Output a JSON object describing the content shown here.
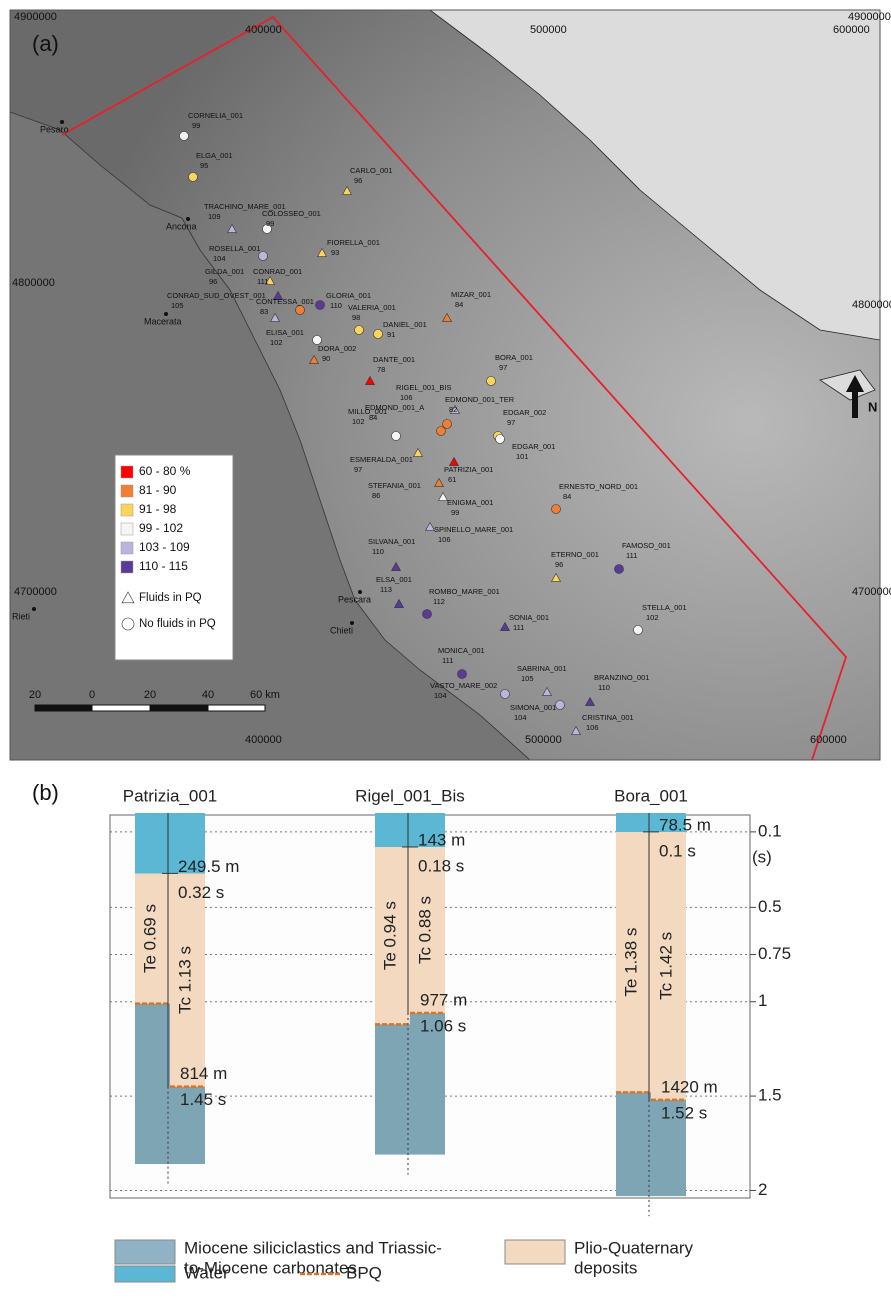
{
  "map": {
    "panel_label": "(a)",
    "coordinates": {
      "top": [
        400000,
        500000,
        600000
      ],
      "bottom": [
        400000,
        500000,
        600000
      ],
      "left": [
        4900000,
        4800000,
        4700000
      ],
      "right": [
        4900000,
        4800000,
        4700000
      ]
    },
    "places": [
      "Pesaro",
      "Ancona",
      "Macerata",
      "Pescara",
      "Chieti",
      "Rieti"
    ],
    "north": "N",
    "scale_bar": [
      20,
      0,
      20,
      40,
      "60 km"
    ],
    "legend": {
      "classes": [
        {
          "label": "60 - 80 %",
          "color": "#ff0000"
        },
        {
          "label": "81 - 90",
          "color": "#f07f34"
        },
        {
          "label": "91 - 98",
          "color": "#fcd45c"
        },
        {
          "label": "99 - 102",
          "color": "#f5f5f5"
        },
        {
          "label": "103 - 109",
          "color": "#bcb4de"
        },
        {
          "label": "110 - 115",
          "color": "#5a3a97"
        }
      ],
      "symbols": [
        {
          "shape": "triangle",
          "label": "Fluids in PQ"
        },
        {
          "shape": "circle",
          "label": "No fluids in PQ"
        }
      ]
    },
    "wells": [
      {
        "name": "CORNELIA_001",
        "value": 99,
        "shape": "circle",
        "color": "#f5f5f5"
      },
      {
        "name": "ELGA_001",
        "value": 95,
        "shape": "circle",
        "color": "#fcd45c"
      },
      {
        "name": "CARLO_001",
        "value": 96,
        "shape": "triangle",
        "color": "#fcd45c"
      },
      {
        "name": "TRACHINO_MARE_001",
        "value": 109,
        "shape": "triangle",
        "color": "#bcb4de"
      },
      {
        "name": "COLOSSEO_001",
        "value": 99,
        "shape": "circle",
        "color": "#f5f5f5"
      },
      {
        "name": "FIORELLA_001",
        "value": 93,
        "shape": "triangle",
        "color": "#fcd45c"
      },
      {
        "name": "ROSELLA_001",
        "value": 104,
        "shape": "circle",
        "color": "#bcb4de"
      },
      {
        "name": "GILDA_001",
        "value": 96,
        "shape": "triangle",
        "color": "#fcd45c"
      },
      {
        "name": "CONRAD_001",
        "value": 111,
        "shape": "triangle",
        "color": "#5a3a97"
      },
      {
        "name": "CONRAD_SUD_OVEST_001",
        "value": 105,
        "shape": "triangle",
        "color": "#bcb4de"
      },
      {
        "name": "CONTESSA_001",
        "value": 83,
        "shape": "circle",
        "color": "#f07f34"
      },
      {
        "name": "GLORIA_001",
        "value": 110,
        "shape": "circle",
        "color": "#5a3a97"
      },
      {
        "name": "VALERIA_001",
        "value": 98,
        "shape": "circle",
        "color": "#fcd45c"
      },
      {
        "name": "DANIEL_001",
        "value": 91,
        "shape": "circle",
        "color": "#fcd45c"
      },
      {
        "name": "MIZAR_001",
        "value": 84,
        "shape": "triangle",
        "color": "#f07f34"
      },
      {
        "name": "ELISA_001",
        "value": 102,
        "shape": "circle",
        "color": "#f5f5f5"
      },
      {
        "name": "DORA_002",
        "value": 90,
        "shape": "triangle",
        "color": "#f07f34"
      },
      {
        "name": "DANTE_001",
        "value": 78,
        "shape": "triangle",
        "color": "#ff0000"
      },
      {
        "name": "BORA_001",
        "value": 97,
        "shape": "circle",
        "color": "#fcd45c"
      },
      {
        "name": "RIGEL_001_BIS",
        "value": 106,
        "shape": "triangle",
        "color": "#bcb4de"
      },
      {
        "name": "EDMOND_001_A",
        "value": 84,
        "shape": "circle",
        "color": "#f07f34"
      },
      {
        "name": "EDMOND_001_TER",
        "value": 82,
        "shape": "circle",
        "color": "#f07f34"
      },
      {
        "name": "MILLO_001",
        "value": 102,
        "shape": "circle",
        "color": "#f5f5f5"
      },
      {
        "name": "EDGAR_002",
        "value": 97,
        "shape": "circle",
        "color": "#fcd45c"
      },
      {
        "name": "EDGAR_001",
        "value": 101,
        "shape": "circle",
        "color": "#f5f5f5"
      },
      {
        "name": "ESMERALDA_001",
        "value": 97,
        "shape": "triangle",
        "color": "#fcd45c"
      },
      {
        "name": "PATRIZIA_001",
        "value": 61,
        "shape": "triangle",
        "color": "#ff0000"
      },
      {
        "name": "STEFANIA_001",
        "value": 86,
        "shape": "triangle",
        "color": "#f07f34"
      },
      {
        "name": "ENIGMA_001",
        "value": 99,
        "shape": "triangle",
        "color": "#f5f5f5"
      },
      {
        "name": "ERNESTO_NORD_001",
        "value": 84,
        "shape": "circle",
        "color": "#f07f34"
      },
      {
        "name": "SPINELLO_MARE_001",
        "value": 106,
        "shape": "triangle",
        "color": "#bcb4de"
      },
      {
        "name": "SILVANA_001",
        "value": 110,
        "shape": "triangle",
        "color": "#5a3a97"
      },
      {
        "name": "ETERNO_001",
        "value": 96,
        "shape": "triangle",
        "color": "#fcd45c"
      },
      {
        "name": "FAMOSO_001",
        "value": 111,
        "shape": "circle",
        "color": "#5a3a97"
      },
      {
        "name": "ELSA_001",
        "value": 113,
        "shape": "triangle",
        "color": "#5a3a97"
      },
      {
        "name": "ROMBO_MARE_001",
        "value": 112,
        "shape": "circle",
        "color": "#5a3a97"
      },
      {
        "name": "SONIA_001",
        "value": 111,
        "shape": "triangle",
        "color": "#5a3a97"
      },
      {
        "name": "STELLA_001",
        "value": 102,
        "shape": "circle",
        "color": "#f5f5f5"
      },
      {
        "name": "MONICA_001",
        "value": 111,
        "shape": "circle",
        "color": "#5a3a97"
      },
      {
        "name": "SABRINA_001",
        "value": 105,
        "shape": "triangle",
        "color": "#bcb4de"
      },
      {
        "name": "BRANZINO_001",
        "value": 110,
        "shape": "triangle",
        "color": "#5a3a97"
      },
      {
        "name": "VASTO_MARE_002",
        "value": 104,
        "shape": "circle",
        "color": "#bcb4de"
      },
      {
        "name": "SIMONA_001",
        "value": 104,
        "shape": "circle",
        "color": "#bcb4de"
      },
      {
        "name": "CRISTINA_001",
        "value": 106,
        "shape": "triangle",
        "color": "#bcb4de"
      }
    ]
  },
  "columns": {
    "panel_label": "(b)",
    "axis_label": "(s)",
    "ylim": [
      0,
      2.04
    ],
    "yticks": [
      0.1,
      0.5,
      0.75,
      1,
      1.5,
      2
    ],
    "colors": {
      "water": "#5bb7d3",
      "pq": "#f2d9c0",
      "miocene": "#7ea5b4",
      "bpq": "#d9742a",
      "miocene_legend": "#8fb3c4"
    },
    "wells": [
      {
        "name": "Patrizia_001",
        "water_depth": "249.5 m",
        "water_time": 0.32,
        "water_time_label": "0.32 s",
        "te": 0.69,
        "te_label": "Te 0.69 s",
        "te_color": "#e8312f",
        "tc": 1.13,
        "tc_label": "Tc 1.13 s",
        "bpq_depth": "814 m",
        "bpq_time": 1.45,
        "bpq_time_label": "1.45 s",
        "bottom": 1.86
      },
      {
        "name": "Rigel_001_Bis",
        "water_depth": "143 m",
        "water_time": 0.18,
        "water_time_label": "0.18 s",
        "te": 0.94,
        "te_label": "Te 0.94 s",
        "te_color": "#2ea44f",
        "tc": 0.88,
        "tc_label": "Tc 0.88 s",
        "bpq_depth": "977 m",
        "bpq_time": 1.06,
        "bpq_time_label": "1.06 s",
        "bottom": 1.81
      },
      {
        "name": "Bora_001",
        "water_depth": "78.5 m",
        "water_time": 0.1,
        "water_time_label": "0.1 s",
        "te": 1.38,
        "te_label": "Te 1.38 s",
        "te_color": "#2ea44f",
        "tc": 1.42,
        "tc_label": "Tc 1.42 s",
        "bpq_depth": "1420 m",
        "bpq_time": 1.52,
        "bpq_time_label": "1.52 s",
        "bottom": 2.03
      }
    ],
    "legend": {
      "miocene": [
        "Miocene siliciclastics and Triassic-",
        "to-Miocene carbonates"
      ],
      "pq": [
        "Plio-Quaternary",
        "deposits"
      ],
      "water": [
        "Water"
      ],
      "bpq": [
        "BPQ"
      ]
    }
  }
}
